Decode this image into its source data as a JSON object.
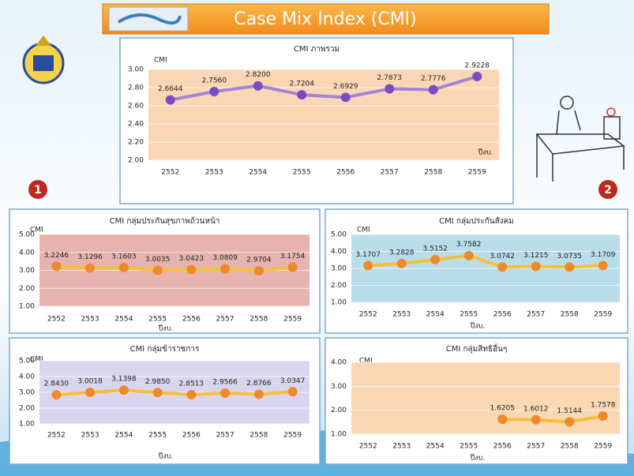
{
  "header": {
    "title": "Case Mix Index (CMI)"
  },
  "badges": [
    "1",
    "2"
  ],
  "chart_data": [
    {
      "type": "line",
      "title": "CMI ภาพรวม",
      "y_label": "CMI",
      "x_label": "ปีงบ.",
      "categories": [
        "2552",
        "2553",
        "2554",
        "2555",
        "2556",
        "2557",
        "2558",
        "2559"
      ],
      "series": [
        {
          "color": "#9f86d6",
          "marker_color": "#7b4cc0",
          "values": [
            2.6644,
            2.756,
            2.82,
            2.7204,
            2.6929,
            2.7873,
            2.7776,
            2.9228
          ],
          "value_labels": [
            "2.6644",
            "2.7560",
            "2.8200",
            "2.7204",
            "2.6929",
            "2.7873",
            "2.7776",
            "2.9228"
          ]
        }
      ],
      "ylim": [
        2.0,
        3.0
      ],
      "yticks": [
        {
          "value": 2.0,
          "label": "2.00"
        },
        {
          "value": 2.2,
          "label": "2.20"
        },
        {
          "value": 2.4,
          "label": "2.40"
        },
        {
          "value": 2.6,
          "label": "2.60"
        },
        {
          "value": 2.8,
          "label": "2.80"
        },
        {
          "value": 3.0,
          "label": "3.00"
        }
      ],
      "grid": true,
      "plot_color": "#fbd6b4"
    },
    {
      "type": "line",
      "title": "CMI กลุ่มประกันสุขภาพถ้วนหน้า",
      "y_label": "CMI",
      "x_label": "ปีงบ.",
      "categories": [
        "2552",
        "2553",
        "2554",
        "2555",
        "2556",
        "2557",
        "2558",
        "2559"
      ],
      "series": [
        {
          "color": "#f6bf3a",
          "marker_color": "#ef8a2c",
          "values": [
            3.2246,
            3.1296,
            3.1603,
            3.0035,
            3.0423,
            3.0809,
            2.9704,
            3.1754
          ],
          "value_labels": [
            "3.2246",
            "3.1296",
            "3.1603",
            "3.0035",
            "3.0423",
            "3.0809",
            "2.9704",
            "3.1754"
          ]
        }
      ],
      "ylim": [
        1.0,
        5.0
      ],
      "yticks": [
        {
          "value": 1.0,
          "label": "1.00"
        },
        {
          "value": 2.0,
          "label": "2.00"
        },
        {
          "value": 3.0,
          "label": "3.00"
        },
        {
          "value": 4.0,
          "label": "4.00"
        },
        {
          "value": 5.0,
          "label": "5.00"
        }
      ],
      "grid": true,
      "plot_color": "#e7b3ae"
    },
    {
      "type": "line",
      "title": "CMI กลุ่มประกันสังคม",
      "y_label": "CMI",
      "x_label": "ปีงบ.",
      "categories": [
        "2552",
        "2553",
        "2554",
        "2555",
        "2556",
        "2557",
        "2558",
        "2559"
      ],
      "series": [
        {
          "color": "#f6bf3a",
          "marker_color": "#ef8a2c",
          "values": [
            3.1707,
            3.2828,
            3.5152,
            3.7582,
            3.0742,
            3.1215,
            3.0735,
            3.1709
          ],
          "value_labels": [
            "3.1707",
            "3.2828",
            "3.5152",
            "3.7582",
            "3.0742",
            "3.1215",
            "3.0735",
            "3.1709"
          ]
        }
      ],
      "ylim": [
        1.0,
        5.0
      ],
      "yticks": [
        {
          "value": 1.0,
          "label": "1.00"
        },
        {
          "value": 2.0,
          "label": "2.00"
        },
        {
          "value": 3.0,
          "label": "3.00"
        },
        {
          "value": 4.0,
          "label": "4.00"
        },
        {
          "value": 5.0,
          "label": "5.00"
        }
      ],
      "grid": true,
      "plot_color": "#b9dde9"
    },
    {
      "type": "line",
      "title": "CMI กลุ่มข้าราชการ",
      "y_label": "CMI",
      "x_label": "ปีงบ.",
      "categories": [
        "2552",
        "2553",
        "2554",
        "2555",
        "2556",
        "2557",
        "2558",
        "2559"
      ],
      "series": [
        {
          "color": "#f6bf3a",
          "marker_color": "#ef8a2c",
          "values": [
            2.843,
            3.0018,
            3.1398,
            2.985,
            2.8513,
            2.9566,
            2.8766,
            3.0347
          ],
          "value_labels": [
            "2.8430",
            "3.0018",
            "3.1398",
            "2.9850",
            "2.8513",
            "2.9566",
            "2.8766",
            "3.0347"
          ]
        }
      ],
      "ylim": [
        1.0,
        5.0
      ],
      "yticks": [
        {
          "value": 1.0,
          "label": "1.00"
        },
        {
          "value": 2.0,
          "label": "2.00"
        },
        {
          "value": 3.0,
          "label": "3.00"
        },
        {
          "value": 4.0,
          "label": "4.00"
        },
        {
          "value": 5.0,
          "label": "5.00"
        }
      ],
      "grid": true,
      "plot_color": "#dad5ee"
    },
    {
      "type": "line",
      "title": "CMI กลุ่มสิทธิอื่นๆ",
      "y_label": "CMI",
      "x_label": "ปีงบ.",
      "categories": [
        "2552",
        "2553",
        "2554",
        "2555",
        "2556",
        "2557",
        "2558",
        "2559"
      ],
      "series": [
        {
          "color": "#f6bf3a",
          "marker_color": "#ef8a2c",
          "values": [
            null,
            null,
            null,
            null,
            1.6205,
            1.6012,
            1.5144,
            1.7578
          ],
          "value_labels": [
            null,
            null,
            null,
            null,
            "1.6205",
            "1.6012",
            "1.5144",
            "1.7578"
          ]
        }
      ],
      "ylim": [
        1.0,
        4.0
      ],
      "yticks": [
        {
          "value": 1.0,
          "label": "1.00"
        },
        {
          "value": 2.0,
          "label": "2.00"
        },
        {
          "value": 3.0,
          "label": "3.00"
        },
        {
          "value": 4.0,
          "label": "4.00"
        }
      ],
      "grid": true,
      "plot_color": "#fad8b4"
    }
  ]
}
